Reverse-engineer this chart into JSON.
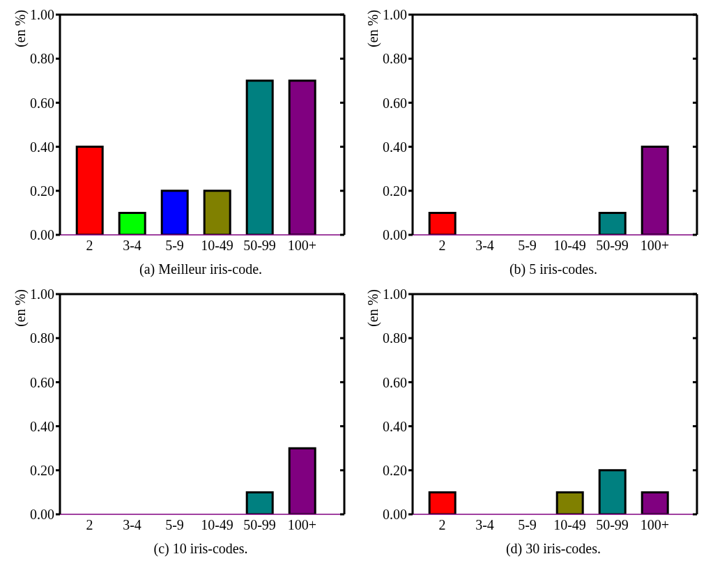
{
  "chart_data": [
    {
      "type": "bar",
      "title": "(a) Meilleur iris-code.",
      "ylabel": "(en %)",
      "categories": [
        "2",
        "3-4",
        "5-9",
        "10-49",
        "50-99",
        "100+"
      ],
      "values": [
        0.4,
        0.1,
        0.2,
        0.2,
        0.7,
        0.7
      ],
      "colors": [
        "#ff0000",
        "#00ff00",
        "#0000ff",
        "#808000",
        "#008080",
        "#800080"
      ],
      "ylim": [
        0,
        1
      ],
      "yticks": [
        {
          "value": 0,
          "label": "0.00"
        },
        {
          "value": 0.2,
          "label": "0.20"
        },
        {
          "value": 0.4,
          "label": "0.40"
        },
        {
          "value": 0.6,
          "label": "0.60"
        },
        {
          "value": 0.8,
          "label": "0.80"
        },
        {
          "value": 1,
          "label": "1.00"
        }
      ]
    },
    {
      "type": "bar",
      "title": "(b) 5 iris-codes.",
      "ylabel": "(en %)",
      "categories": [
        "2",
        "3-4",
        "5-9",
        "10-49",
        "50-99",
        "100+"
      ],
      "values": [
        0.1,
        0,
        0,
        0,
        0.1,
        0.4
      ],
      "colors": [
        "#ff0000",
        "#00ff00",
        "#0000ff",
        "#808000",
        "#008080",
        "#800080"
      ],
      "ylim": [
        0,
        1
      ],
      "yticks": [
        {
          "value": 0,
          "label": "0.00"
        },
        {
          "value": 0.2,
          "label": "0.20"
        },
        {
          "value": 0.4,
          "label": "0.40"
        },
        {
          "value": 0.6,
          "label": "0.60"
        },
        {
          "value": 0.8,
          "label": "0.80"
        },
        {
          "value": 1,
          "label": "1.00"
        }
      ]
    },
    {
      "type": "bar",
      "title": "(c) 10 iris-codes.",
      "ylabel": "(en %)",
      "categories": [
        "2",
        "3-4",
        "5-9",
        "10-49",
        "50-99",
        "100+"
      ],
      "values": [
        0,
        0,
        0,
        0,
        0.1,
        0.3
      ],
      "colors": [
        "#ff0000",
        "#00ff00",
        "#0000ff",
        "#808000",
        "#008080",
        "#800080"
      ],
      "ylim": [
        0,
        1
      ],
      "yticks": [
        {
          "value": 0,
          "label": "0.00"
        },
        {
          "value": 0.2,
          "label": "0.20"
        },
        {
          "value": 0.4,
          "label": "0.40"
        },
        {
          "value": 0.6,
          "label": "0.60"
        },
        {
          "value": 0.8,
          "label": "0.80"
        },
        {
          "value": 1,
          "label": "1.00"
        }
      ]
    },
    {
      "type": "bar",
      "title": "(d) 30 iris-codes.",
      "ylabel": "(en %)",
      "categories": [
        "2",
        "3-4",
        "5-9",
        "10-49",
        "50-99",
        "100+"
      ],
      "values": [
        0.1,
        0,
        0,
        0.1,
        0.2,
        0.1
      ],
      "colors": [
        "#ff0000",
        "#00ff00",
        "#0000ff",
        "#808000",
        "#008080",
        "#800080"
      ],
      "ylim": [
        0,
        1
      ],
      "yticks": [
        {
          "value": 0,
          "label": "0.00"
        },
        {
          "value": 0.2,
          "label": "0.20"
        },
        {
          "value": 0.4,
          "label": "0.40"
        },
        {
          "value": 0.6,
          "label": "0.60"
        },
        {
          "value": 0.8,
          "label": "0.80"
        },
        {
          "value": 1,
          "label": "1.00"
        }
      ]
    }
  ]
}
